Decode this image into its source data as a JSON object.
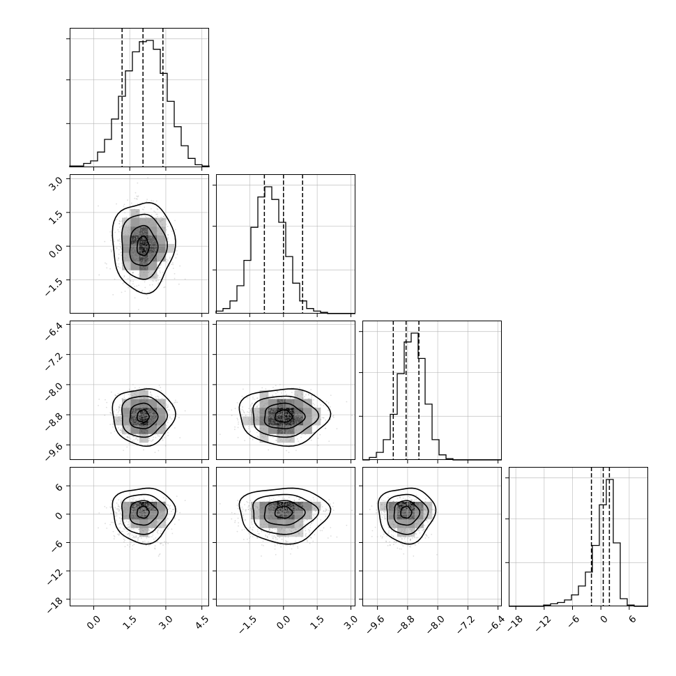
{
  "chart_data": {
    "type": "corner",
    "grid": true,
    "colors": {
      "line": "#000000",
      "grid": "#b0b0b0",
      "scatter": "#9a9a9a",
      "background": "#ffffff"
    },
    "params": [
      {
        "range": [
          -1.0,
          4.8
        ],
        "ticks": [
          0.0,
          1.5,
          3.0,
          4.5
        ],
        "tick_labels": [
          "0.0",
          "1.5",
          "3.0",
          "4.5"
        ],
        "quantiles": [
          1.18,
          2.05,
          2.88
        ],
        "mean": 2.05,
        "sd": 0.55
      },
      {
        "range": [
          -3.0,
          3.2
        ],
        "ticks": [
          -1.5,
          0.0,
          1.5,
          3.0
        ],
        "tick_labels": [
          "−1.5",
          "0.0",
          "1.5",
          "3.0"
        ],
        "quantiles": [
          -0.85,
          0.0,
          0.85
        ],
        "mean": 0.0,
        "sd": 0.85
      },
      {
        "range": [
          -10.0,
          -6.3
        ],
        "ticks": [
          -9.6,
          -8.8,
          -8.0,
          -7.2,
          -6.4
        ],
        "tick_labels": [
          "−9.6",
          "−8.8",
          "−8.0",
          "−7.2",
          "−6.4"
        ],
        "quantiles": [
          -9.18,
          -8.84,
          -8.5
        ],
        "mean": -8.84,
        "sd": 0.32
      },
      {
        "range": [
          -19.5,
          10.0
        ],
        "ticks": [
          -18,
          -12,
          -6,
          0,
          6
        ],
        "tick_labels": [
          "−18",
          "−12",
          "−6",
          "0",
          "6"
        ],
        "quantiles": [
          -2.0,
          0.5,
          1.8
        ],
        "mean": 0.5,
        "sd": 2.3
      }
    ],
    "hist_bins": 20,
    "diag_hist": [
      [
        0.01,
        0.01,
        0.03,
        0.05,
        0.12,
        0.22,
        0.38,
        0.56,
        0.76,
        0.91,
        0.99,
        1.0,
        0.93,
        0.74,
        0.52,
        0.32,
        0.17,
        0.07,
        0.02,
        0.01
      ],
      [
        0.02,
        0.04,
        0.1,
        0.22,
        0.42,
        0.68,
        0.92,
        1.0,
        0.9,
        0.72,
        0.45,
        0.24,
        0.1,
        0.04,
        0.02,
        0.01,
        0.0,
        0.0,
        0.0,
        0.0
      ],
      [
        0.0,
        0.02,
        0.06,
        0.16,
        0.36,
        0.68,
        0.93,
        1.0,
        0.8,
        0.44,
        0.16,
        0.04,
        0.01,
        0.0,
        0.0,
        0.0,
        0.0,
        0.0,
        0.0,
        0.0
      ],
      [
        0.0,
        0.0,
        0.0,
        0.0,
        0.0,
        0.01,
        0.02,
        0.03,
        0.05,
        0.09,
        0.16,
        0.27,
        0.48,
        0.8,
        1.0,
        0.5,
        0.06,
        0.01,
        0.0,
        0.0
      ]
    ]
  }
}
